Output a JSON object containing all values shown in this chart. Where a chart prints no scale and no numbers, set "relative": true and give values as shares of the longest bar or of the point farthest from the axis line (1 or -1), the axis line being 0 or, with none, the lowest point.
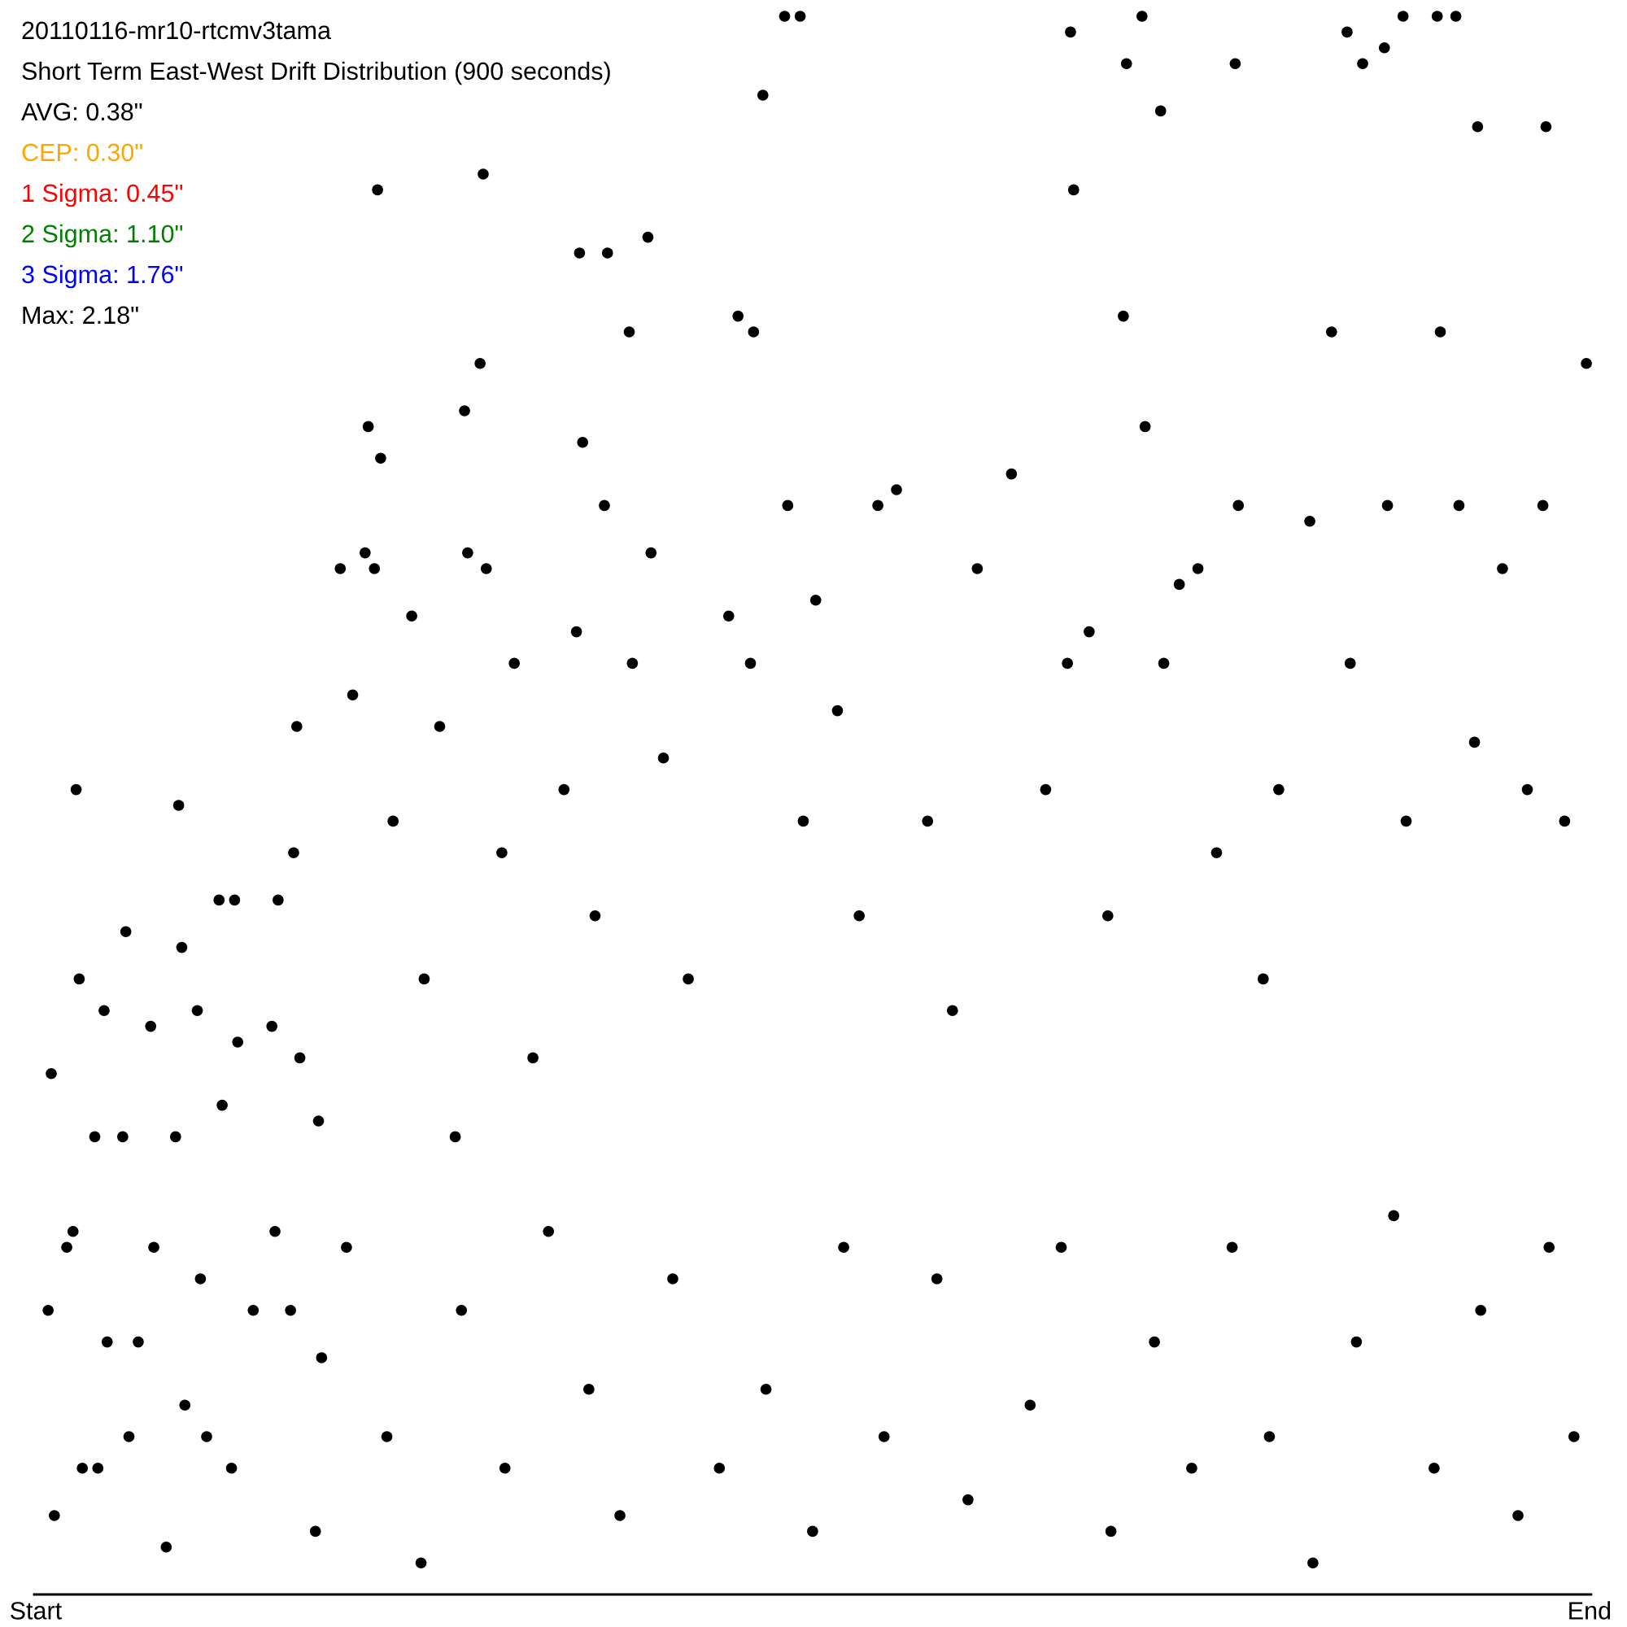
{
  "chart_data": {
    "type": "scatter",
    "title": "20110116-mr10-rtcmv3tama",
    "subtitle": "Short Term East-West Drift Distribution (900 seconds)",
    "annotations": [
      "AVG: 0.38\"",
      "CEP: 0.30\"",
      "1 Sigma: 0.45\"",
      "2 Sigma: 1.10\"",
      "3 Sigma: 1.76\"",
      "Max: 2.18\""
    ],
    "relative": true,
    "tick_labels": "x",
    "categories": [
      "Start",
      null,
      null,
      null,
      null,
      null,
      null,
      null,
      null,
      null,
      null,
      null,
      null,
      null,
      null,
      null,
      null,
      null,
      null,
      null,
      null,
      null,
      null,
      null,
      null,
      null,
      null,
      null,
      null,
      null,
      null,
      null,
      null,
      null,
      null,
      null,
      null,
      null,
      null,
      null,
      null,
      null,
      null,
      null,
      null,
      null,
      null,
      null,
      null,
      null,
      null,
      null,
      null,
      null,
      null,
      null,
      null,
      null,
      null,
      null,
      null,
      null,
      null,
      null,
      null,
      null,
      null,
      null,
      null,
      null,
      null,
      null,
      null,
      null,
      null,
      null,
      null,
      null,
      null,
      null,
      null,
      null,
      null,
      null,
      null,
      null,
      null,
      null,
      null,
      null,
      null,
      null,
      null,
      null,
      null,
      null,
      null,
      null,
      null,
      null,
      null,
      null,
      null,
      null,
      null,
      null,
      null,
      null,
      null,
      null,
      null,
      null,
      null,
      null,
      null,
      null,
      null,
      null,
      null,
      null,
      null,
      null,
      null,
      null,
      null,
      null,
      null,
      null,
      null,
      null,
      null,
      null,
      null,
      null,
      null,
      null,
      null,
      null,
      null,
      null,
      null,
      null,
      null,
      null,
      null,
      null,
      null,
      null,
      null,
      null,
      null,
      null,
      null,
      null,
      null,
      null,
      null,
      null,
      null,
      null,
      null,
      null,
      null,
      null,
      null,
      null,
      null,
      null,
      null,
      null,
      null,
      null,
      null,
      null,
      null,
      null,
      null,
      null,
      null,
      null,
      null,
      null,
      null,
      null,
      null,
      null,
      null,
      null,
      null,
      null,
      null,
      null,
      null,
      null,
      null,
      null,
      null,
      null,
      null,
      null,
      null,
      null,
      null,
      null,
      null,
      null,
      null,
      null,
      null,
      null,
      null,
      null,
      null,
      null,
      null,
      null,
      null,
      null,
      null,
      null,
      null,
      null,
      null,
      null,
      null,
      null,
      null,
      null,
      null,
      null,
      null,
      null,
      null,
      null,
      null,
      null,
      null,
      null,
      null,
      null,
      null,
      null,
      null,
      null,
      null,
      null,
      null,
      null,
      null,
      null,
      null,
      null,
      null,
      null,
      null,
      null,
      null,
      null,
      null,
      null,
      null,
      null,
      null,
      null,
      null,
      null,
      null,
      null,
      null,
      null,
      null,
      null,
      null,
      null,
      null,
      null,
      null,
      null,
      null,
      null,
      null,
      null,
      null,
      null,
      null,
      null,
      null,
      null,
      null,
      null,
      null,
      null,
      null,
      null,
      null,
      null,
      null,
      null,
      null,
      null,
      null,
      null,
      null,
      null,
      null,
      null,
      null,
      null,
      null,
      null,
      null,
      null,
      null,
      null,
      null,
      null,
      null,
      null,
      null,
      null,
      null,
      null,
      null,
      null,
      null,
      null,
      null,
      null,
      null,
      null,
      null,
      null,
      null,
      null,
      null,
      null,
      null,
      null,
      null,
      null,
      null,
      null,
      null,
      null,
      null,
      null,
      null,
      null,
      null,
      null,
      null,
      null,
      null,
      null,
      null,
      null,
      null,
      null,
      null,
      null,
      null,
      null,
      null,
      null,
      null,
      null,
      null,
      null,
      null,
      null,
      null,
      null,
      null,
      null,
      null,
      null,
      null,
      null,
      null,
      null,
      null,
      null,
      null,
      null,
      null,
      null,
      null,
      null,
      null,
      null,
      null,
      null,
      null,
      null,
      null,
      null,
      null,
      null,
      null,
      null,
      null,
      null,
      null,
      null,
      null,
      null,
      null,
      null,
      null,
      null,
      null,
      null,
      null,
      null,
      null,
      null,
      null,
      null,
      null,
      null,
      null,
      null,
      null,
      null,
      null,
      null,
      null,
      null,
      null,
      null,
      null,
      null,
      null,
      null,
      null,
      null,
      null,
      null,
      null,
      null,
      null,
      null,
      null,
      null,
      null,
      null,
      null,
      null,
      null,
      null,
      null,
      null,
      null,
      null,
      null,
      null,
      null,
      null,
      null,
      null,
      null,
      null,
      null,
      null,
      null,
      null,
      null,
      null,
      null,
      null,
      null,
      null,
      null,
      null,
      null,
      null,
      null,
      null,
      null,
      null,
      null,
      null,
      null,
      null,
      null,
      null,
      null,
      null,
      null,
      null,
      null,
      null,
      null,
      null,
      null,
      null,
      null,
      null,
      null,
      null,
      "End"
    ],
    "series": [
      {
        "color": "#000000",
        "values": [
          null,
          null,
          null,
          null,
          0.18,
          0.33,
          0.05,
          null,
          null,
          null,
          0.22,
          null,
          0.23,
          0.51,
          0.39,
          0.08,
          null,
          null,
          null,
          0.29,
          0.08,
          null,
          0.37,
          0.16,
          null,
          null,
          null,
          null,
          0.29,
          0.42,
          0.1,
          null,
          null,
          0.16,
          null,
          null,
          null,
          0.36,
          0.22,
          null,
          null,
          null,
          0.03,
          null,
          null,
          0.29,
          0.5,
          0.41,
          0.12,
          null,
          null,
          null,
          0.37,
          0.2,
          null,
          0.1,
          null,
          null,
          null,
          0.44,
          0.31,
          null,
          null,
          0.08,
          0.44,
          0.35,
          null,
          null,
          null,
          null,
          0.18,
          null,
          null,
          null,
          null,
          null,
          0.36,
          0.23,
          0.44,
          null,
          null,
          null,
          0.18,
          0.47,
          0.55,
          0.34,
          null,
          null,
          null,
          null,
          0.04,
          0.3,
          0.15,
          null,
          null,
          null,
          null,
          null,
          0.65,
          null,
          0.22,
          null,
          0.57,
          null,
          null,
          null,
          0.66,
          0.74,
          null,
          0.65,
          0.89,
          0.72,
          null,
          0.1,
          null,
          0.49,
          null,
          null,
          null,
          null,
          null,
          0.62,
          null,
          null,
          0.02,
          0.39,
          null,
          null,
          null,
          null,
          0.55,
          null,
          null,
          null,
          null,
          0.29,
          null,
          0.18,
          0.75,
          0.66,
          null,
          null,
          null,
          0.78,
          0.9,
          0.65,
          null,
          null,
          null,
          null,
          0.47,
          0.08,
          null,
          null,
          0.59,
          null,
          null,
          null,
          null,
          null,
          0.34,
          null,
          null,
          null,
          null,
          0.23,
          null,
          null,
          null,
          null,
          0.51,
          null,
          null,
          null,
          0.61,
          0.85,
          0.73,
          null,
          0.13,
          null,
          0.43,
          null,
          null,
          0.69,
          0.85,
          null,
          null,
          null,
          0.05,
          null,
          null,
          0.8,
          0.59,
          null,
          null,
          null,
          null,
          0.86,
          0.66,
          null,
          null,
          null,
          0.53,
          null,
          null,
          0.2,
          null,
          null,
          null,
          null,
          0.39,
          null,
          null,
          null,
          null,
          null,
          null,
          null,
          null,
          null,
          0.08,
          null,
          null,
          0.62,
          null,
          null,
          0.81,
          null,
          null,
          null,
          0.59,
          0.8,
          null,
          null,
          0.95,
          0.13,
          null,
          null,
          null,
          null,
          null,
          1,
          0.69,
          null,
          null,
          null,
          1,
          0.49,
          null,
          null,
          0.04,
          0.63,
          null,
          null,
          null,
          null,
          null,
          null,
          0.56,
          null,
          0.22,
          null,
          null,
          null,
          null,
          0.43,
          null,
          null,
          null,
          null,
          null,
          0.69,
          null,
          0.1,
          null,
          null,
          null,
          0.7,
          null,
          null,
          null,
          null,
          null,
          null,
          null,
          null,
          null,
          0.49,
          null,
          null,
          0.2,
          null,
          null,
          null,
          null,
          0.37,
          null,
          null,
          null,
          null,
          0.06,
          null,
          null,
          0.65,
          null,
          null,
          null,
          null,
          null,
          null,
          null,
          null,
          null,
          null,
          0.71,
          null,
          null,
          null,
          null,
          null,
          0.12,
          null,
          null,
          null,
          null,
          0.51,
          null,
          null,
          null,
          null,
          0.22,
          null,
          0.59,
          0.99,
          0.89,
          null,
          null,
          null,
          null,
          0.61,
          null,
          null,
          null,
          null,
          null,
          0.43,
          0.04,
          null,
          null,
          null,
          0.81,
          0.97,
          null,
          null,
          null,
          null,
          1,
          0.74,
          null,
          null,
          0.16,
          null,
          0.94,
          0.59,
          null,
          null,
          null,
          null,
          0.64,
          null,
          null,
          null,
          0.08,
          null,
          0.65,
          null,
          null,
          null,
          null,
          null,
          0.47,
          null,
          null,
          null,
          null,
          0.22,
          0.97,
          0.69,
          null,
          null,
          null,
          null,
          null,
          null,
          null,
          0.39,
          null,
          0.1,
          null,
          null,
          0.51,
          null,
          null,
          null,
          null,
          null,
          null,
          null,
          null,
          null,
          0.68,
          0.02,
          null,
          null,
          null,
          null,
          null,
          0.8,
          null,
          null,
          null,
          null,
          0.99,
          0.59,
          null,
          0.16,
          null,
          0.97,
          null,
          null,
          null,
          null,
          null,
          null,
          0.98,
          0.69,
          null,
          0.24,
          null,
          null,
          1,
          0.49,
          null,
          null,
          null,
          null,
          null,
          null,
          null,
          null,
          0.08,
          1,
          0.8,
          null,
          null,
          null,
          null,
          1,
          0.69,
          null,
          null,
          null,
          null,
          0.54,
          0.93,
          0.18,
          null,
          null,
          null,
          null,
          null,
          null,
          0.65,
          null,
          null,
          null,
          null,
          0.05,
          null,
          null,
          0.51,
          null,
          null,
          null,
          null,
          0.69,
          0.93,
          0.22,
          null,
          null,
          null,
          null,
          0.49,
          null,
          null,
          0.1,
          null,
          null,
          null,
          0.78,
          null
        ]
      }
    ]
  }
}
